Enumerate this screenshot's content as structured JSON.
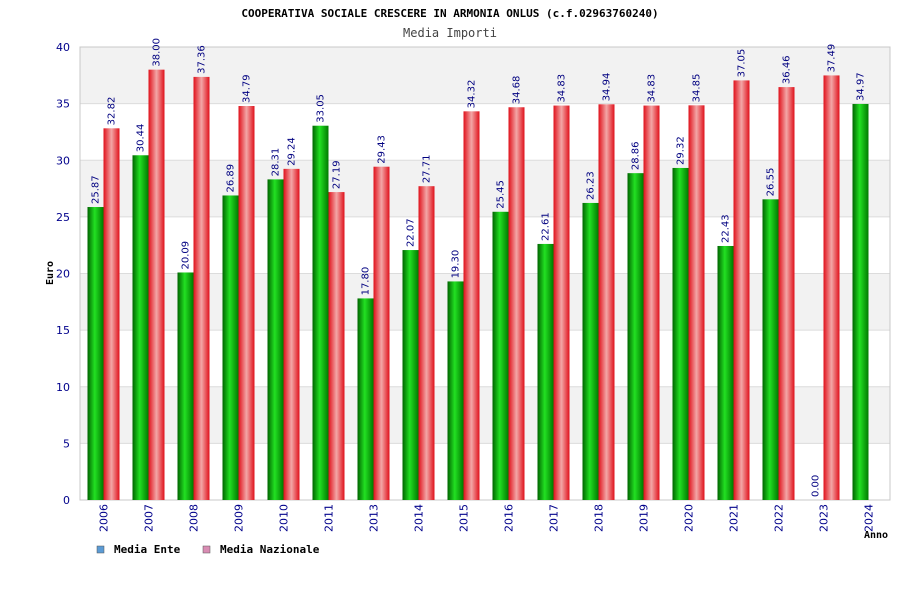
{
  "chart_data": {
    "type": "bar",
    "title": "COOPERATIVA SOCIALE CRESCERE IN ARMONIA ONLUS (c.f.02963760240)",
    "subtitle": "Media Importi",
    "xlabel": "Anno",
    "ylabel": "Euro",
    "ylim": [
      0,
      40
    ],
    "yticks": [
      0,
      5,
      10,
      15,
      20,
      25,
      30,
      35,
      40
    ],
    "grid": true,
    "legend_position": "bottom-left",
    "categories": [
      "2006",
      "2007",
      "2008",
      "2009",
      "2010",
      "2011",
      "2013",
      "2014",
      "2015",
      "2016",
      "2017",
      "2018",
      "2019",
      "2020",
      "2021",
      "2022",
      "2023",
      "2024"
    ],
    "series": [
      {
        "name": "Media Ente",
        "legend_color": "#5b9bd5",
        "bar_color": "#00b000",
        "values": [
          25.87,
          30.44,
          20.09,
          26.89,
          28.31,
          33.05,
          17.8,
          22.07,
          19.3,
          25.45,
          22.61,
          26.23,
          28.86,
          29.32,
          22.43,
          26.55,
          0.0,
          34.97
        ],
        "labels": [
          "25.87",
          "30.44",
          "20.09",
          "26.89",
          "28.31",
          "33.05",
          "17.80",
          "22.07",
          "19.30",
          "25.45",
          "22.61",
          "26.23",
          "28.86",
          "29.32",
          "22.43",
          "26.55",
          "0.00",
          "34.97"
        ]
      },
      {
        "name": "Media Nazionale",
        "legend_color": "#d98cb3",
        "bar_color": "#e8141c",
        "values": [
          32.82,
          38.0,
          37.36,
          34.79,
          29.24,
          27.19,
          29.43,
          27.71,
          34.32,
          34.68,
          34.83,
          34.94,
          34.83,
          34.85,
          37.05,
          36.46,
          37.49,
          null
        ],
        "labels": [
          "32.82",
          "38.00",
          "37.36",
          "34.79",
          "29.24",
          "27.19",
          "29.43",
          "27.71",
          "34.32",
          "34.68",
          "34.83",
          "34.94",
          "34.83",
          "34.85",
          "37.05",
          "36.46",
          "37.49",
          null
        ]
      }
    ]
  }
}
